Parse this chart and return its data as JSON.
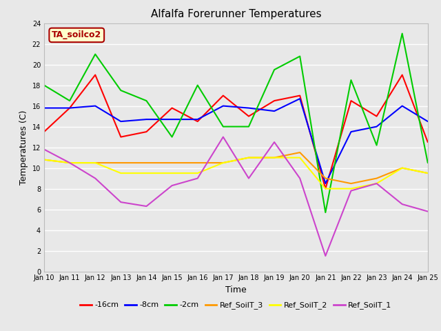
{
  "title": "Alfalfa Forerunner Temperatures",
  "xlabel": "Time",
  "ylabel": "Temperatures (C)",
  "annotation": "TA_soilco2",
  "ylim": [
    0,
    24
  ],
  "yticks": [
    0,
    2,
    4,
    6,
    8,
    10,
    12,
    14,
    16,
    18,
    20,
    22,
    24
  ],
  "x_labels": [
    "Jan 10",
    "Jan 11",
    "Jan 12",
    "Jan 13",
    "Jan 14",
    "Jan 15",
    "Jan 16",
    "Jan 17",
    "Jan 18",
    "Jan 19",
    "Jan 20",
    "Jan 21",
    "Jan 22",
    "Jan 23",
    "Jan 24",
    "Jan 25"
  ],
  "x_values": [
    0,
    1,
    2,
    3,
    4,
    5,
    6,
    7,
    8,
    9,
    10,
    11,
    12,
    13,
    14,
    15
  ],
  "series": {
    "-16cm": {
      "color": "#ff0000",
      "values": [
        13.5,
        15.8,
        19.0,
        13.0,
        13.5,
        15.8,
        14.5,
        17.0,
        15.0,
        16.5,
        17.0,
        8.0,
        16.5,
        15.0,
        19.0,
        12.5
      ]
    },
    "-8cm": {
      "color": "#0000ff",
      "values": [
        15.8,
        15.8,
        16.0,
        14.5,
        14.7,
        14.7,
        14.7,
        16.0,
        15.8,
        15.5,
        16.7,
        8.5,
        13.5,
        14.0,
        16.0,
        14.5
      ]
    },
    "-2cm": {
      "color": "#00cc00",
      "values": [
        18.0,
        16.5,
        21.0,
        17.5,
        16.5,
        13.0,
        18.0,
        14.0,
        14.0,
        19.5,
        20.8,
        5.7,
        18.5,
        12.2,
        23.0,
        10.5
      ]
    },
    "Ref_SoilT_3": {
      "color": "#ff9900",
      "values": [
        10.8,
        10.5,
        10.5,
        10.5,
        10.5,
        10.5,
        10.5,
        10.5,
        11.0,
        11.0,
        11.5,
        9.0,
        8.5,
        9.0,
        10.0,
        9.5
      ]
    },
    "Ref_SoilT_2": {
      "color": "#ffff00",
      "values": [
        10.8,
        10.5,
        10.5,
        9.5,
        9.5,
        9.5,
        9.5,
        10.5,
        11.0,
        11.0,
        11.0,
        8.0,
        8.0,
        8.5,
        10.0,
        9.5
      ]
    },
    "Ref_SoilT_1": {
      "color": "#cc44cc",
      "values": [
        11.8,
        10.5,
        9.0,
        6.7,
        6.3,
        8.3,
        9.0,
        13.0,
        9.0,
        12.5,
        9.0,
        1.5,
        7.8,
        8.5,
        6.5,
        5.8
      ]
    }
  },
  "bg_color": "#e8e8e8",
  "fig_bg_color": "#e8e8e8",
  "grid_color": "#ffffff",
  "title_fontsize": 11,
  "axis_fontsize": 9,
  "tick_fontsize": 7,
  "legend_fontsize": 8,
  "line_width": 1.5
}
